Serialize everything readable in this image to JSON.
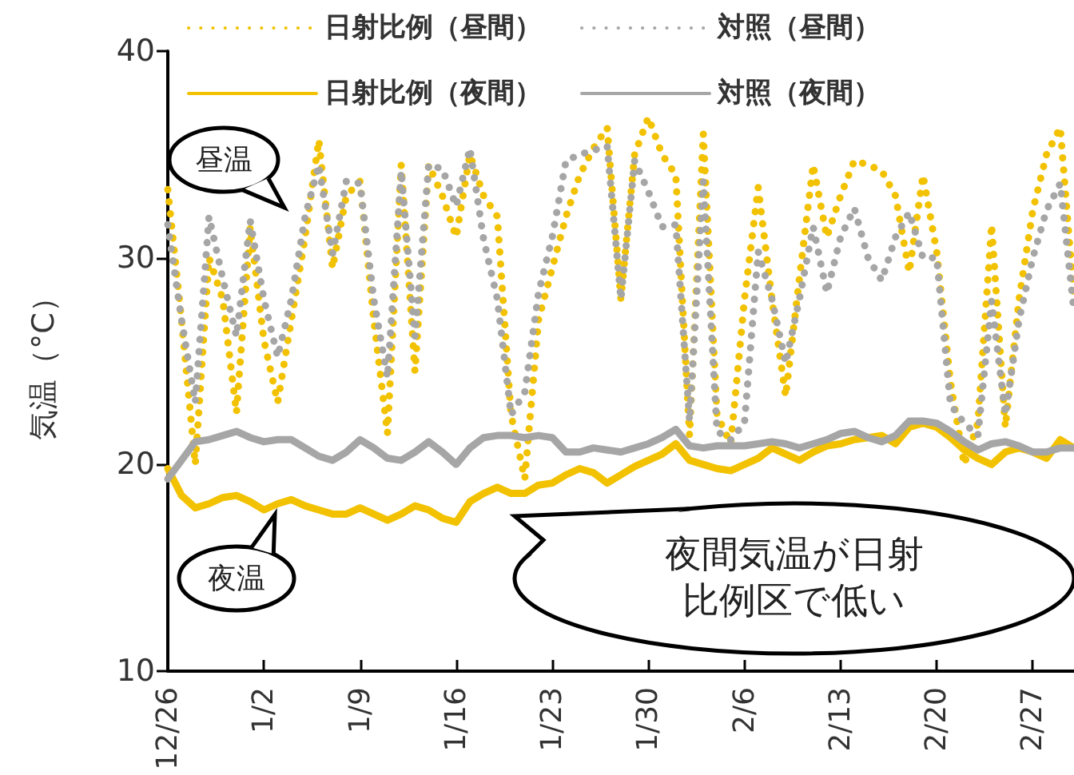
{
  "chart_data": {
    "type": "line",
    "ylabel": "気温（°C）",
    "ylim": [
      10,
      40
    ],
    "yticks": [
      10,
      20,
      30,
      40
    ],
    "categories": [
      "12/26",
      null,
      null,
      null,
      null,
      null,
      null,
      "1/2",
      null,
      null,
      null,
      null,
      null,
      null,
      "1/9",
      null,
      null,
      null,
      null,
      null,
      null,
      "1/16",
      null,
      null,
      null,
      null,
      null,
      null,
      "1/23",
      null,
      null,
      null,
      null,
      null,
      null,
      "1/30",
      null,
      null,
      null,
      null,
      null,
      null,
      "2/6",
      null,
      null,
      null,
      null,
      null,
      null,
      "2/13",
      null,
      null,
      null,
      null,
      null,
      null,
      "2/20",
      null,
      null,
      null,
      null,
      null,
      null,
      "2/27",
      null,
      null,
      null
    ],
    "series": [
      {
        "name": "日射比例（昼間）",
        "color": "#f2c200",
        "line_style": "dotted",
        "values": [
          33.3,
          27,
          20,
          30,
          28,
          22.5,
          31.5,
          26,
          23,
          27,
          31,
          35.7,
          29.5,
          33,
          33.7,
          27,
          21.5,
          34.5,
          24.5,
          34.5,
          33,
          31,
          35,
          33,
          32,
          22.4,
          19.3,
          27,
          29.5,
          32,
          34,
          35.3,
          36.3,
          28,
          35,
          36.8,
          35,
          34,
          21.4,
          36,
          22.4,
          21,
          28,
          33.4,
          28,
          23.3,
          29,
          34.5,
          31,
          33,
          34.7,
          34.5,
          34.2,
          33,
          29.3,
          34,
          30.3,
          24,
          20,
          22,
          31.6,
          21.8,
          28,
          32.3,
          35,
          36.3,
          28
        ]
      },
      {
        "name": "対照（昼間）",
        "color": "#a6a6a6",
        "line_style": "dotted",
        "values": [
          31.6,
          27,
          23,
          32,
          29,
          26.2,
          31.8,
          28,
          25.2,
          28,
          32,
          34.5,
          30.2,
          33.7,
          33.6,
          28,
          24.2,
          34.2,
          26.2,
          34.5,
          34.3,
          32.5,
          35.3,
          30.9,
          28,
          22.4,
          23.5,
          28.3,
          31,
          34.7,
          35,
          35.2,
          35.4,
          28,
          34.7,
          33.2,
          31.5,
          31.6,
          22.1,
          33.7,
          21.6,
          21.2,
          22,
          30.3,
          28,
          24.9,
          28,
          31.5,
          28.3,
          31,
          32.4,
          30,
          28.9,
          31,
          32.2,
          30,
          30,
          22.9,
          22,
          21.4,
          27.9,
          22.4,
          27,
          30,
          32.3,
          33.6,
          27.4
        ]
      },
      {
        "name": "日射比例（夜間）",
        "color": "#f2c200",
        "line_style": "solid",
        "values": [
          19.8,
          18.5,
          17.9,
          18.1,
          18.4,
          18.5,
          18.2,
          17.8,
          18.1,
          18.3,
          18,
          17.8,
          17.6,
          17.6,
          17.9,
          17.6,
          17.3,
          17.6,
          18,
          17.8,
          17.4,
          17.2,
          18.2,
          18.6,
          18.9,
          18.6,
          18.6,
          19,
          19.1,
          19.5,
          19.8,
          19.6,
          19.1,
          19.5,
          19.9,
          20.2,
          20.5,
          21,
          20.2,
          20,
          19.8,
          19.7,
          20,
          20.3,
          20.8,
          20.5,
          20.2,
          20.6,
          20.9,
          21,
          21.2,
          21.3,
          21.4,
          21,
          21.8,
          22,
          21.8,
          21.3,
          20.7,
          20.3,
          20,
          20.6,
          20.8,
          20.6,
          20.3,
          21.2,
          20.8
        ]
      },
      {
        "name": "対照（夜間）",
        "color": "#a6a6a6",
        "line_style": "solid",
        "values": [
          19.3,
          20.2,
          21.1,
          21.2,
          21.4,
          21.6,
          21.3,
          21.1,
          21.2,
          21.2,
          20.8,
          20.4,
          20.2,
          20.6,
          21.2,
          20.8,
          20.3,
          20.2,
          20.6,
          21.1,
          20.6,
          20,
          20.8,
          21.3,
          21.4,
          21.4,
          21.3,
          21.4,
          21.3,
          20.6,
          20.6,
          20.8,
          20.7,
          20.6,
          20.8,
          21,
          21.3,
          21.7,
          20.9,
          20.8,
          20.9,
          20.9,
          20.9,
          21,
          21.1,
          21,
          20.8,
          21,
          21.2,
          21.5,
          21.6,
          21.3,
          21.1,
          21.4,
          22.1,
          22.1,
          22,
          21.6,
          21.1,
          20.7,
          21,
          21.1,
          20.9,
          20.6,
          20.6,
          20.8,
          20.8
        ]
      }
    ],
    "marker": "none",
    "grid": false,
    "legend": "top",
    "annotations": [
      "昼温",
      "夜温",
      "夜間気温が日射比例区で低い"
    ]
  }
}
